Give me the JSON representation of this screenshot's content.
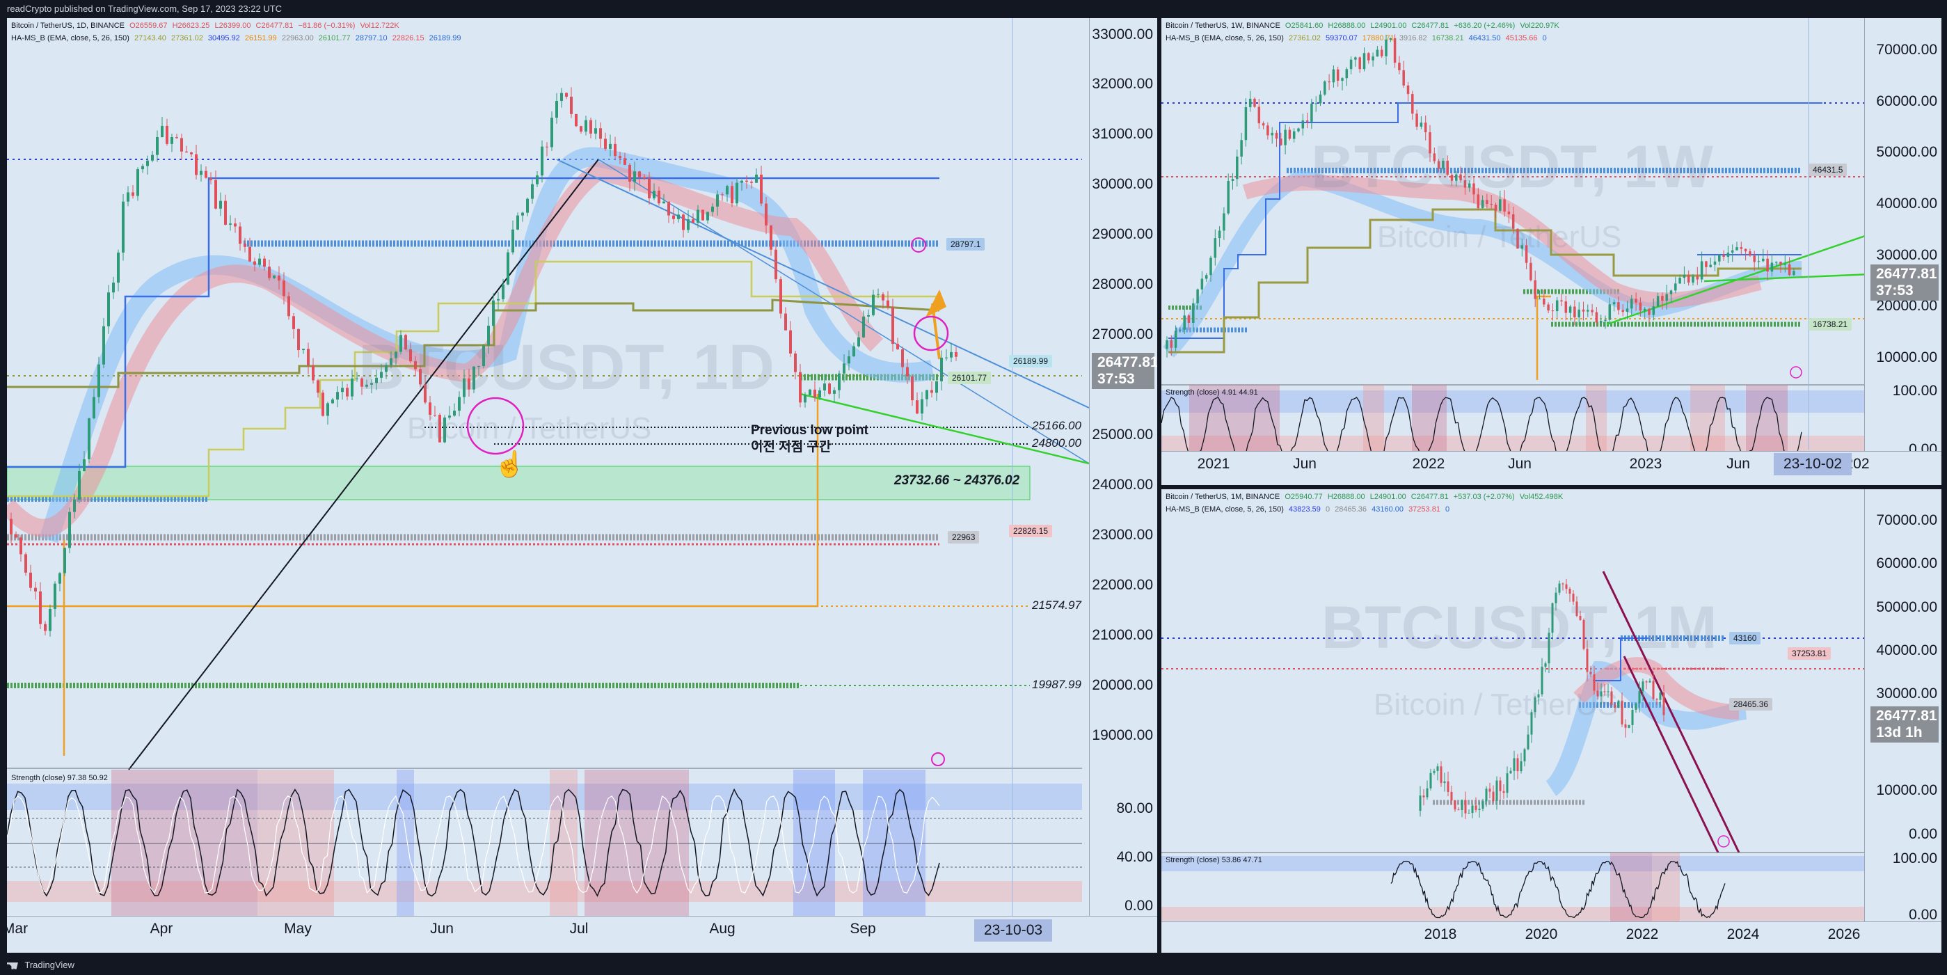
{
  "header": {
    "text": "readCrypto published on TradingView.com, Sep 17, 2023 23:22 UTC"
  },
  "footer": {
    "brand": "TradingView"
  },
  "panel_daily": {
    "title": "Bitcoin / TetherUS, 1D, BINANCE",
    "ohlc": {
      "o": "O26559.67",
      "h": "H26623.25",
      "l": "L26399.00",
      "c": "C26477.81",
      "chg": "−81.86 (−0.31%)",
      "vol": "Vol12.722K"
    },
    "indicator": "HA-MS_B (EMA, close, 5, 26, 150)",
    "indicator_values": [
      "27143.40",
      "27361.02",
      "30495.92",
      "26151.99",
      "22963.00",
      "26101.77",
      "28797.10",
      "22826.15",
      "26189.99"
    ],
    "watermark": "BTCUSDT, 1D",
    "watermark_sub": "Bitcoin / TetherUS",
    "price_ticks": [
      "33000.00",
      "32000.00",
      "31000.00",
      "30000.00",
      "29000.00",
      "28000.00",
      "27000.00",
      "25000.00",
      "24000.00",
      "23000.00",
      "22000.00",
      "21000.00",
      "20000.00",
      "19000.00"
    ],
    "osc_ticks": [
      "80.00",
      "40.00",
      "0.00"
    ],
    "time_ticks": [
      "Mar",
      "Apr",
      "May",
      "Jun",
      "Jul",
      "Aug",
      "Sep"
    ],
    "price_box": "26477.81",
    "countdown": "37:53",
    "date_box": "23-10-03",
    "level_labels": [
      "28797.1",
      "26189.99",
      "26101.77",
      "25166.00",
      "24800.00",
      "21574.97",
      "19987.99",
      "22963",
      "22826.15"
    ],
    "zone_label": "23732.66 ~ 24376.02",
    "annotation_en": "Previous low point",
    "annotation_ko": "이전 저점 구간",
    "osc_legend": "Strength (close)",
    "osc_values": [
      "97.38",
      "50.92"
    ]
  },
  "panel_weekly": {
    "title": "Bitcoin / TetherUS, 1W, BINANCE",
    "ohlc": {
      "o": "O25841.60",
      "h": "H26888.00",
      "l": "L24901.00",
      "c": "C26477.81",
      "chg": "+636.20 (+2.46%)",
      "vol": "Vol220.97K"
    },
    "indicator": "HA-MS_B (EMA, close, 5, 26, 150)",
    "indicator_values": [
      "27361.02",
      "59370.07",
      "17880.71",
      "3916.82",
      "16738.21",
      "46431.50",
      "45135.66",
      "0"
    ],
    "watermark": "BTCUSDT, 1W",
    "watermark_sub": "Bitcoin / TetherUS",
    "price_ticks": [
      "70000.00",
      "60000.00",
      "50000.00",
      "40000.00",
      "30000.00",
      "20000.00",
      "10000.00"
    ],
    "osc_ticks": [
      "100.00",
      "0.00"
    ],
    "time_ticks": [
      "2021",
      "Jun",
      "2022",
      "Jun",
      "2023",
      "Jun",
      "202"
    ],
    "price_box": "26477.81",
    "countdown": "37:53",
    "date_box": "23-10-02",
    "level_labels": [
      "46431.5",
      "16738.21"
    ],
    "osc_legend": "Strength (close)",
    "osc_values": [
      "4.91",
      "44.91"
    ]
  },
  "panel_monthly": {
    "title": "Bitcoin / TetherUS, 1M, BINANCE",
    "ohlc": {
      "o": "O25940.77",
      "h": "H26888.00",
      "l": "L24901.00",
      "c": "C26477.81",
      "chg": "+537.03 (+2.07%)",
      "vol": "Vol452.498K"
    },
    "indicator": "HA-MS_B (EMA, close, 5, 26, 150)",
    "indicator_values": [
      "43823.59",
      "0",
      "28465.36",
      "43160.00",
      "37253.81",
      "0"
    ],
    "watermark": "BTCUSDT, 1M",
    "watermark_sub": "Bitcoin / TetherUS",
    "price_ticks": [
      "70000.00",
      "60000.00",
      "50000.00",
      "40000.00",
      "30000.00",
      "20000.00",
      "10000.00",
      "0.00"
    ],
    "osc_ticks": [
      "100.00",
      "0.00"
    ],
    "time_ticks": [
      "2018",
      "2020",
      "2022",
      "2024",
      "2026"
    ],
    "price_box": "26477.81",
    "countdown": "13d 1h",
    "level_labels": [
      "43160",
      "37253.81",
      "28465.36"
    ],
    "osc_legend": "Strength (close)",
    "osc_values": [
      "53.86",
      "47.71"
    ]
  }
}
